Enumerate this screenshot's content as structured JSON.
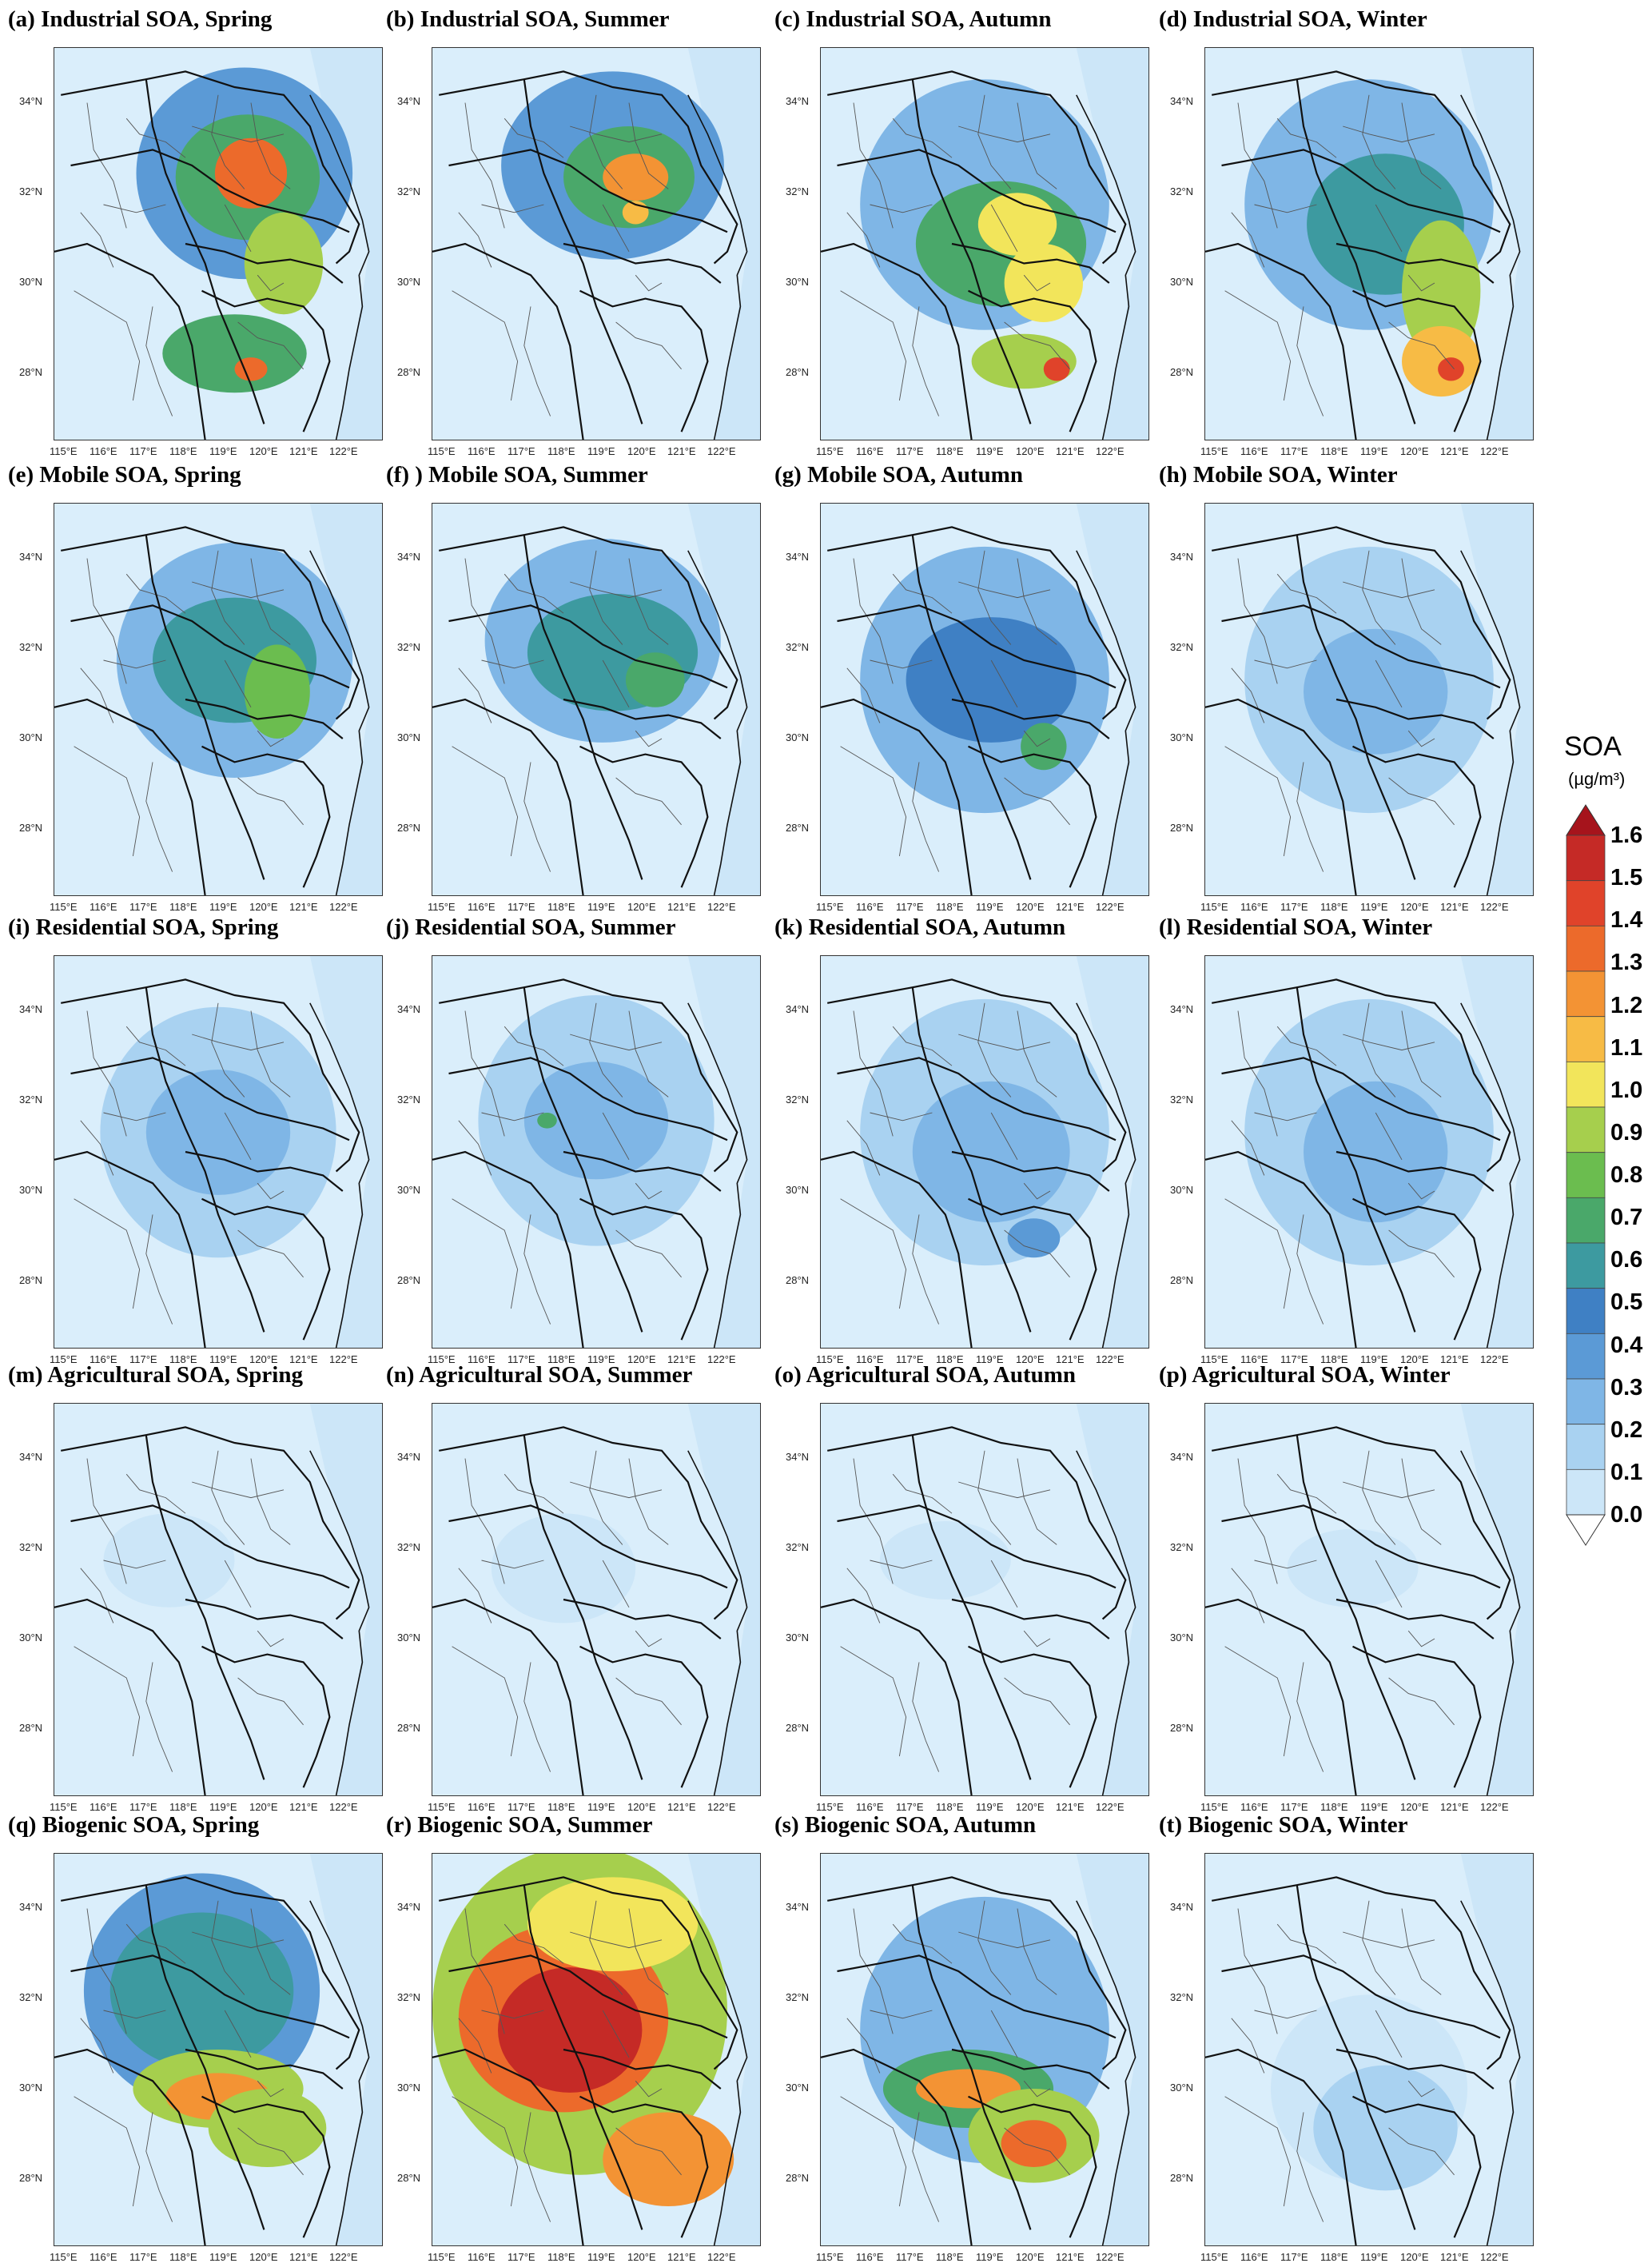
{
  "chart_data": {
    "type": "heatmap",
    "colorbar": {
      "title": "SOA",
      "unit": "(µg/m³)",
      "levels": [
        "0.0",
        "0.1",
        "0.2",
        "0.3",
        "0.4",
        "0.5",
        "0.6",
        "0.7",
        "0.8",
        "0.9",
        "1.0",
        "1.1",
        "1.2",
        "1.3",
        "1.4",
        "1.5",
        "1.6"
      ],
      "colors": [
        "#e6f4fd",
        "#cce6f8",
        "#a9d2f1",
        "#7fb6e6",
        "#5b9ad6",
        "#3f80c4",
        "#3d9aa0",
        "#4aa86a",
        "#6bbd4f",
        "#a6cf4d",
        "#f2e55b",
        "#f7bb45",
        "#f39334",
        "#ec6a2b",
        "#e0432a",
        "#c52a26",
        "#a6141c"
      ]
    },
    "x_ticks": [
      "115°E",
      "116°E",
      "117°E",
      "118°E",
      "119°E",
      "120°E",
      "121°E",
      "122°E"
    ],
    "y_ticks": [
      "34°N",
      "32°N",
      "30°N",
      "28°N"
    ],
    "panels": [
      {
        "title": "(a) Industrial SOA, Spring",
        "blobs": [
          [
            0.58,
            0.32,
            0.33,
            0.27,
            0.45
          ],
          [
            0.59,
            0.33,
            0.22,
            0.16,
            0.75
          ],
          [
            0.6,
            0.32,
            0.11,
            0.09,
            1.35
          ],
          [
            0.7,
            0.55,
            0.12,
            0.13,
            0.95
          ],
          [
            0.55,
            0.78,
            0.22,
            0.1,
            0.75
          ],
          [
            0.6,
            0.82,
            0.05,
            0.03,
            1.3
          ]
        ]
      },
      {
        "title": "(b) Industrial SOA, Summer",
        "blobs": [
          [
            0.55,
            0.3,
            0.34,
            0.24,
            0.4
          ],
          [
            0.6,
            0.33,
            0.2,
            0.13,
            0.7
          ],
          [
            0.62,
            0.33,
            0.1,
            0.06,
            1.25
          ],
          [
            0.62,
            0.42,
            0.04,
            0.03,
            1.1
          ]
        ]
      },
      {
        "title": "(c) Industrial SOA, Autumn",
        "blobs": [
          [
            0.5,
            0.4,
            0.38,
            0.32,
            0.38
          ],
          [
            0.55,
            0.5,
            0.26,
            0.16,
            0.7
          ],
          [
            0.6,
            0.45,
            0.12,
            0.08,
            1.0
          ],
          [
            0.68,
            0.6,
            0.12,
            0.1,
            1.0
          ],
          [
            0.62,
            0.8,
            0.16,
            0.07,
            0.95
          ],
          [
            0.72,
            0.82,
            0.04,
            0.03,
            1.4
          ]
        ]
      },
      {
        "title": "(d) Industrial SOA, Winter",
        "blobs": [
          [
            0.5,
            0.4,
            0.38,
            0.32,
            0.36
          ],
          [
            0.55,
            0.45,
            0.24,
            0.18,
            0.62
          ],
          [
            0.72,
            0.62,
            0.12,
            0.18,
            0.98
          ],
          [
            0.72,
            0.8,
            0.12,
            0.09,
            1.1
          ],
          [
            0.75,
            0.82,
            0.04,
            0.03,
            1.4
          ]
        ]
      },
      {
        "title": "(e) Mobile SOA, Spring",
        "blobs": [
          [
            0.55,
            0.4,
            0.36,
            0.3,
            0.38
          ],
          [
            0.55,
            0.4,
            0.25,
            0.16,
            0.62
          ],
          [
            0.68,
            0.48,
            0.1,
            0.12,
            0.85
          ]
        ]
      },
      {
        "title": "(f) ) Mobile SOA, Summer",
        "blobs": [
          [
            0.52,
            0.35,
            0.36,
            0.26,
            0.36
          ],
          [
            0.55,
            0.38,
            0.26,
            0.15,
            0.6
          ],
          [
            0.68,
            0.45,
            0.09,
            0.07,
            0.78
          ]
        ]
      },
      {
        "title": "(g) Mobile SOA, Autumn",
        "blobs": [
          [
            0.5,
            0.45,
            0.38,
            0.34,
            0.32
          ],
          [
            0.52,
            0.45,
            0.26,
            0.16,
            0.5
          ],
          [
            0.68,
            0.62,
            0.07,
            0.06,
            0.7
          ]
        ]
      },
      {
        "title": "(h) Mobile SOA, Winter",
        "blobs": [
          [
            0.5,
            0.45,
            0.38,
            0.34,
            0.26
          ],
          [
            0.52,
            0.48,
            0.22,
            0.16,
            0.36
          ]
        ]
      },
      {
        "title": "(i) Residential SOA, Spring",
        "blobs": [
          [
            0.5,
            0.45,
            0.36,
            0.32,
            0.24
          ],
          [
            0.5,
            0.45,
            0.22,
            0.16,
            0.33
          ]
        ]
      },
      {
        "title": "(j) Residential SOA, Summer",
        "blobs": [
          [
            0.5,
            0.42,
            0.36,
            0.32,
            0.23
          ],
          [
            0.5,
            0.42,
            0.22,
            0.15,
            0.33
          ],
          [
            0.35,
            0.42,
            0.03,
            0.02,
            0.7
          ]
        ]
      },
      {
        "title": "(k) Residential SOA, Autumn",
        "blobs": [
          [
            0.5,
            0.45,
            0.38,
            0.34,
            0.24
          ],
          [
            0.52,
            0.5,
            0.24,
            0.18,
            0.34
          ],
          [
            0.65,
            0.72,
            0.08,
            0.05,
            0.48
          ]
        ]
      },
      {
        "title": "(l) Residential SOA, Winter",
        "blobs": [
          [
            0.5,
            0.45,
            0.38,
            0.34,
            0.22
          ],
          [
            0.52,
            0.5,
            0.22,
            0.18,
            0.32
          ]
        ]
      },
      {
        "title": "(m) Agricultural SOA, Spring",
        "blobs": [
          [
            0.35,
            0.4,
            0.2,
            0.12,
            0.13
          ]
        ]
      },
      {
        "title": "(n) Agricultural SOA, Summer",
        "blobs": [
          [
            0.4,
            0.42,
            0.22,
            0.14,
            0.13
          ]
        ]
      },
      {
        "title": "(o) Agricultural SOA, Autumn",
        "blobs": [
          [
            0.38,
            0.4,
            0.2,
            0.1,
            0.12
          ]
        ]
      },
      {
        "title": "(p) Agricultural SOA, Winter",
        "blobs": [
          [
            0.45,
            0.42,
            0.2,
            0.1,
            0.12
          ]
        ]
      },
      {
        "title": "(q) Biogenic SOA, Spring",
        "blobs": [
          [
            0.45,
            0.35,
            0.36,
            0.3,
            0.42
          ],
          [
            0.45,
            0.35,
            0.28,
            0.2,
            0.6
          ],
          [
            0.5,
            0.6,
            0.26,
            0.1,
            0.98
          ],
          [
            0.5,
            0.62,
            0.16,
            0.06,
            1.25
          ],
          [
            0.65,
            0.7,
            0.18,
            0.1,
            0.9
          ]
        ]
      },
      {
        "title": "(r) Biogenic SOA, Summer",
        "blobs": [
          [
            0.45,
            0.4,
            0.45,
            0.42,
            0.95
          ],
          [
            0.4,
            0.42,
            0.32,
            0.24,
            1.35
          ],
          [
            0.42,
            0.45,
            0.22,
            0.16,
            1.58
          ],
          [
            0.72,
            0.78,
            0.2,
            0.12,
            1.2
          ],
          [
            0.55,
            0.18,
            0.26,
            0.12,
            1.05
          ]
        ]
      },
      {
        "title": "(s) Biogenic SOA, Autumn",
        "blobs": [
          [
            0.5,
            0.45,
            0.38,
            0.34,
            0.3
          ],
          [
            0.45,
            0.6,
            0.26,
            0.1,
            0.7
          ],
          [
            0.45,
            0.6,
            0.16,
            0.05,
            1.2
          ],
          [
            0.65,
            0.72,
            0.2,
            0.12,
            0.95
          ],
          [
            0.65,
            0.74,
            0.1,
            0.06,
            1.3
          ]
        ]
      },
      {
        "title": "(t) Biogenic SOA, Winter",
        "blobs": [
          [
            0.5,
            0.6,
            0.3,
            0.24,
            0.16
          ],
          [
            0.55,
            0.7,
            0.22,
            0.16,
            0.26
          ]
        ]
      }
    ]
  }
}
